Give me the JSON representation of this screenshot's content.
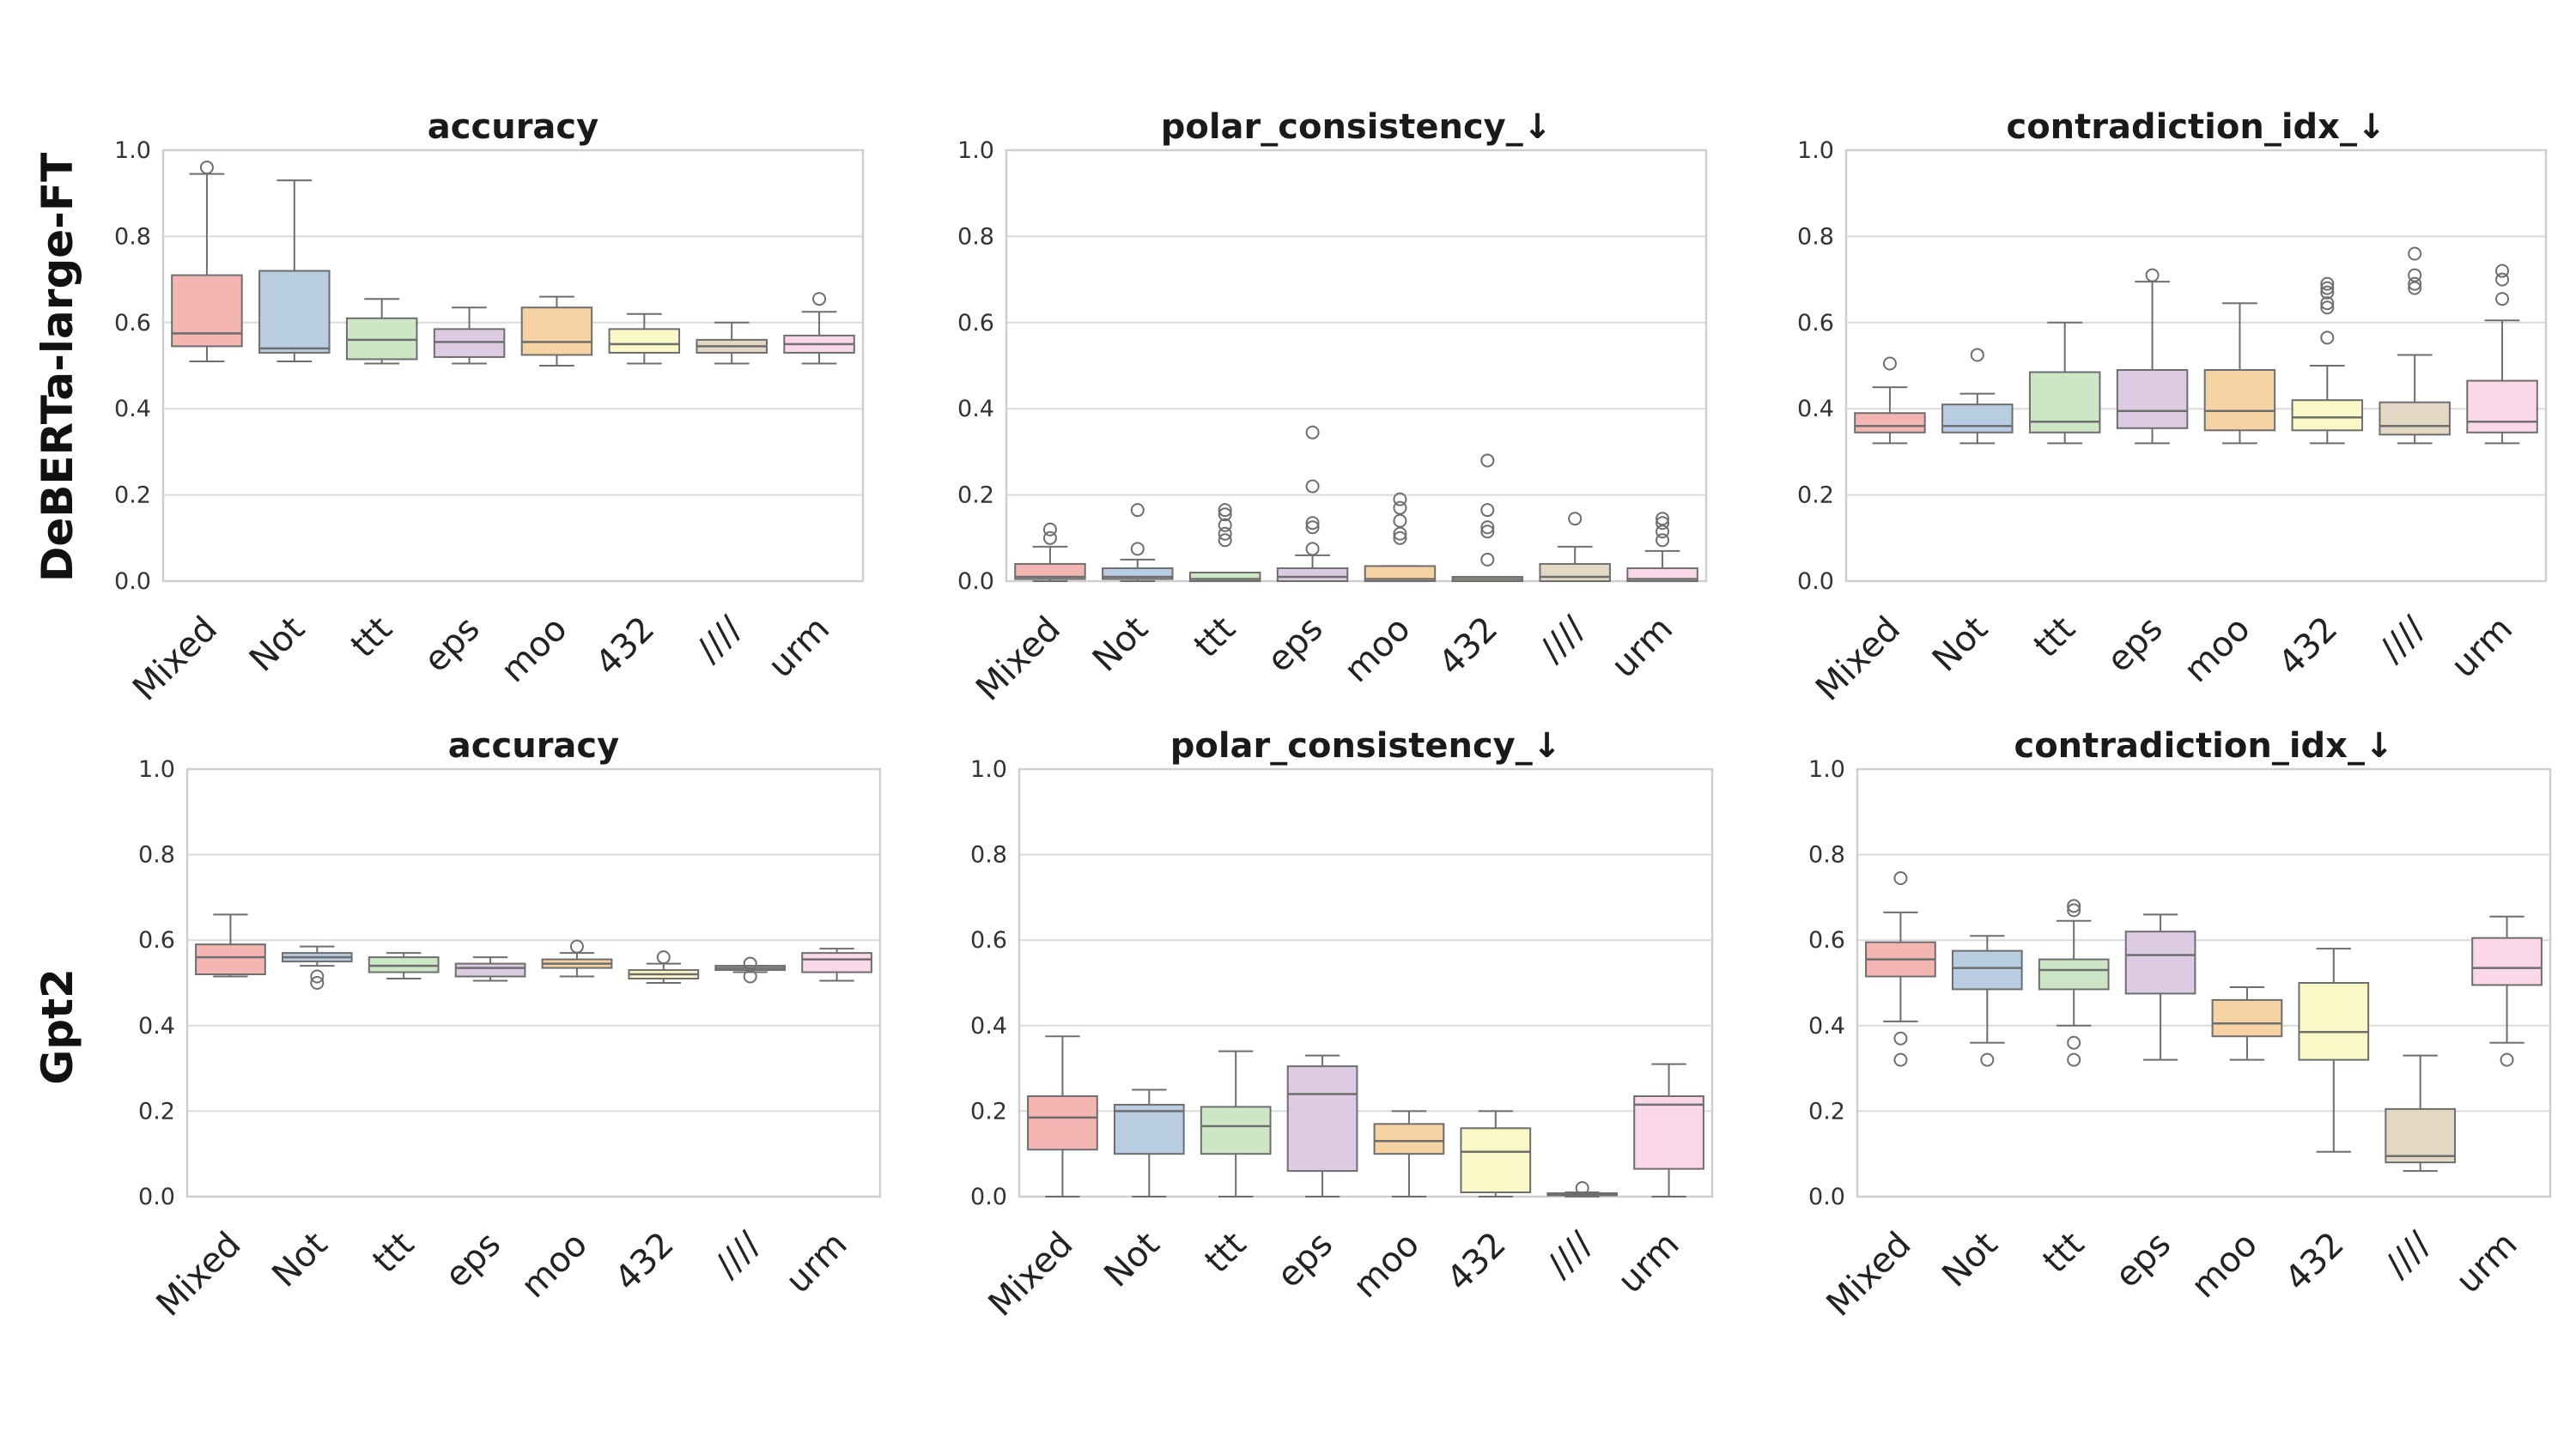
{
  "row_labels": [
    "DeBERTa-large-FT",
    "Gpt2"
  ],
  "palette": [
    "#f4b6b3",
    "#b8cce2",
    "#cde6c6",
    "#dccbe3",
    "#f7d2a3",
    "#fbf8c7",
    "#e3d8c3",
    "#fad8e9"
  ],
  "chart_data": [
    {
      "type": "box",
      "row": "DeBERTa-large-FT",
      "title": "accuracy",
      "categories": [
        "Mixed",
        "Not",
        "ttt",
        "eps",
        "moo",
        "432",
        "////",
        "urm"
      ],
      "ylim": [
        0,
        1
      ],
      "yticks": [
        "0.0",
        "0.2",
        "0.4",
        "0.6",
        "0.8",
        "1.0"
      ],
      "grid": true,
      "boxes": [
        {
          "whislo": 0.51,
          "q1": 0.545,
          "med": 0.575,
          "q3": 0.71,
          "whishi": 0.945,
          "fliers": [
            0.96
          ]
        },
        {
          "whislo": 0.51,
          "q1": 0.53,
          "med": 0.54,
          "q3": 0.72,
          "whishi": 0.93,
          "fliers": []
        },
        {
          "whislo": 0.505,
          "q1": 0.515,
          "med": 0.56,
          "q3": 0.61,
          "whishi": 0.655,
          "fliers": []
        },
        {
          "whislo": 0.505,
          "q1": 0.52,
          "med": 0.555,
          "q3": 0.585,
          "whishi": 0.635,
          "fliers": []
        },
        {
          "whislo": 0.5,
          "q1": 0.525,
          "med": 0.555,
          "q3": 0.635,
          "whishi": 0.66,
          "fliers": []
        },
        {
          "whislo": 0.505,
          "q1": 0.53,
          "med": 0.55,
          "q3": 0.585,
          "whishi": 0.62,
          "fliers": []
        },
        {
          "whislo": 0.505,
          "q1": 0.53,
          "med": 0.545,
          "q3": 0.56,
          "whishi": 0.6,
          "fliers": []
        },
        {
          "whislo": 0.505,
          "q1": 0.53,
          "med": 0.55,
          "q3": 0.57,
          "whishi": 0.625,
          "fliers": [
            0.655
          ]
        }
      ]
    },
    {
      "type": "box",
      "row": "DeBERTa-large-FT",
      "title": "polar_consistency_↓",
      "categories": [
        "Mixed",
        "Not",
        "ttt",
        "eps",
        "moo",
        "432",
        "////",
        "urm"
      ],
      "ylim": [
        0,
        1
      ],
      "yticks": [
        "0.0",
        "0.2",
        "0.4",
        "0.6",
        "0.8",
        "1.0"
      ],
      "grid": true,
      "boxes": [
        {
          "whislo": 0.0,
          "q1": 0.005,
          "med": 0.01,
          "q3": 0.04,
          "whishi": 0.08,
          "fliers": [
            0.1,
            0.12
          ]
        },
        {
          "whislo": 0.0,
          "q1": 0.005,
          "med": 0.01,
          "q3": 0.03,
          "whishi": 0.05,
          "fliers": [
            0.075,
            0.165
          ]
        },
        {
          "whislo": 0.0,
          "q1": 0.0,
          "med": 0.005,
          "q3": 0.02,
          "whishi": 0.02,
          "fliers": [
            0.095,
            0.11,
            0.13,
            0.155,
            0.165
          ]
        },
        {
          "whislo": 0.0,
          "q1": 0.0,
          "med": 0.01,
          "q3": 0.03,
          "whishi": 0.06,
          "fliers": [
            0.075,
            0.125,
            0.135,
            0.22,
            0.345
          ]
        },
        {
          "whislo": 0.0,
          "q1": 0.0,
          "med": 0.005,
          "q3": 0.035,
          "whishi": 0.035,
          "fliers": [
            0.1,
            0.11,
            0.14,
            0.17,
            0.19
          ]
        },
        {
          "whislo": 0.0,
          "q1": 0.0,
          "med": 0.005,
          "q3": 0.01,
          "whishi": 0.01,
          "fliers": [
            0.05,
            0.115,
            0.125,
            0.165,
            0.28
          ]
        },
        {
          "whislo": 0.0,
          "q1": 0.0,
          "med": 0.01,
          "q3": 0.04,
          "whishi": 0.08,
          "fliers": [
            0.145
          ]
        },
        {
          "whislo": 0.0,
          "q1": 0.0,
          "med": 0.005,
          "q3": 0.03,
          "whishi": 0.07,
          "fliers": [
            0.095,
            0.115,
            0.135,
            0.145
          ]
        }
      ]
    },
    {
      "type": "box",
      "row": "DeBERTa-large-FT",
      "title": "contradiction_idx_↓",
      "categories": [
        "Mixed",
        "Not",
        "ttt",
        "eps",
        "moo",
        "432",
        "////",
        "urm"
      ],
      "ylim": [
        0,
        1
      ],
      "yticks": [
        "0.0",
        "0.2",
        "0.4",
        "0.6",
        "0.8",
        "1.0"
      ],
      "grid": true,
      "boxes": [
        {
          "whislo": 0.32,
          "q1": 0.345,
          "med": 0.36,
          "q3": 0.39,
          "whishi": 0.45,
          "fliers": [
            0.505
          ]
        },
        {
          "whislo": 0.32,
          "q1": 0.345,
          "med": 0.36,
          "q3": 0.41,
          "whishi": 0.435,
          "fliers": [
            0.525
          ]
        },
        {
          "whislo": 0.32,
          "q1": 0.345,
          "med": 0.37,
          "q3": 0.485,
          "whishi": 0.6,
          "fliers": []
        },
        {
          "whislo": 0.32,
          "q1": 0.355,
          "med": 0.395,
          "q3": 0.49,
          "whishi": 0.695,
          "fliers": [
            0.71
          ]
        },
        {
          "whislo": 0.32,
          "q1": 0.35,
          "med": 0.395,
          "q3": 0.49,
          "whishi": 0.645,
          "fliers": []
        },
        {
          "whislo": 0.32,
          "q1": 0.35,
          "med": 0.38,
          "q3": 0.42,
          "whishi": 0.5,
          "fliers": [
            0.565,
            0.635,
            0.645,
            0.67,
            0.68,
            0.69
          ]
        },
        {
          "whislo": 0.32,
          "q1": 0.34,
          "med": 0.36,
          "q3": 0.415,
          "whishi": 0.525,
          "fliers": [
            0.68,
            0.69,
            0.71,
            0.76
          ]
        },
        {
          "whislo": 0.32,
          "q1": 0.345,
          "med": 0.37,
          "q3": 0.465,
          "whishi": 0.605,
          "fliers": [
            0.655,
            0.7,
            0.72
          ]
        }
      ]
    },
    {
      "type": "box",
      "row": "Gpt2",
      "title": "accuracy",
      "categories": [
        "Mixed",
        "Not",
        "ttt",
        "eps",
        "moo",
        "432",
        "////",
        "urm"
      ],
      "ylim": [
        0,
        1
      ],
      "yticks": [
        "0.0",
        "0.2",
        "0.4",
        "0.6",
        "0.8",
        "1.0"
      ],
      "grid": true,
      "boxes": [
        {
          "whislo": 0.515,
          "q1": 0.52,
          "med": 0.56,
          "q3": 0.59,
          "whishi": 0.66,
          "fliers": []
        },
        {
          "whislo": 0.54,
          "q1": 0.55,
          "med": 0.56,
          "q3": 0.57,
          "whishi": 0.585,
          "fliers": [
            0.5,
            0.515
          ]
        },
        {
          "whislo": 0.51,
          "q1": 0.525,
          "med": 0.54,
          "q3": 0.56,
          "whishi": 0.57,
          "fliers": []
        },
        {
          "whislo": 0.505,
          "q1": 0.515,
          "med": 0.535,
          "q3": 0.545,
          "whishi": 0.56,
          "fliers": []
        },
        {
          "whislo": 0.515,
          "q1": 0.535,
          "med": 0.545,
          "q3": 0.555,
          "whishi": 0.57,
          "fliers": [
            0.585
          ]
        },
        {
          "whislo": 0.5,
          "q1": 0.51,
          "med": 0.52,
          "q3": 0.53,
          "whishi": 0.545,
          "fliers": [
            0.56
          ]
        },
        {
          "whislo": 0.525,
          "q1": 0.53,
          "med": 0.535,
          "q3": 0.54,
          "whishi": 0.54,
          "fliers": [
            0.515,
            0.545
          ]
        },
        {
          "whislo": 0.505,
          "q1": 0.525,
          "med": 0.555,
          "q3": 0.57,
          "whishi": 0.58,
          "fliers": []
        }
      ]
    },
    {
      "type": "box",
      "row": "Gpt2",
      "title": "polar_consistency_↓",
      "categories": [
        "Mixed",
        "Not",
        "ttt",
        "eps",
        "moo",
        "432",
        "////",
        "urm"
      ],
      "ylim": [
        0,
        1
      ],
      "yticks": [
        "0.0",
        "0.2",
        "0.4",
        "0.6",
        "0.8",
        "1.0"
      ],
      "grid": true,
      "boxes": [
        {
          "whislo": 0.0,
          "q1": 0.11,
          "med": 0.185,
          "q3": 0.235,
          "whishi": 0.375,
          "fliers": []
        },
        {
          "whislo": 0.0,
          "q1": 0.1,
          "med": 0.2,
          "q3": 0.215,
          "whishi": 0.25,
          "fliers": []
        },
        {
          "whislo": 0.0,
          "q1": 0.1,
          "med": 0.165,
          "q3": 0.21,
          "whishi": 0.34,
          "fliers": []
        },
        {
          "whislo": 0.0,
          "q1": 0.06,
          "med": 0.24,
          "q3": 0.305,
          "whishi": 0.33,
          "fliers": []
        },
        {
          "whislo": 0.0,
          "q1": 0.1,
          "med": 0.13,
          "q3": 0.17,
          "whishi": 0.2,
          "fliers": []
        },
        {
          "whislo": 0.0,
          "q1": 0.01,
          "med": 0.105,
          "q3": 0.16,
          "whishi": 0.2,
          "fliers": []
        },
        {
          "whislo": 0.0,
          "q1": 0.003,
          "med": 0.005,
          "q3": 0.008,
          "whishi": 0.01,
          "fliers": [
            0.02
          ]
        },
        {
          "whislo": 0.0,
          "q1": 0.065,
          "med": 0.215,
          "q3": 0.235,
          "whishi": 0.31,
          "fliers": []
        }
      ]
    },
    {
      "type": "box",
      "row": "Gpt2",
      "title": "contradiction_idx_↓",
      "categories": [
        "Mixed",
        "Not",
        "ttt",
        "eps",
        "moo",
        "432",
        "////",
        "urm"
      ],
      "ylim": [
        0,
        1
      ],
      "yticks": [
        "0.0",
        "0.2",
        "0.4",
        "0.6",
        "0.8",
        "1.0"
      ],
      "grid": true,
      "boxes": [
        {
          "whislo": 0.41,
          "q1": 0.515,
          "med": 0.555,
          "q3": 0.595,
          "whishi": 0.665,
          "fliers": [
            0.32,
            0.37,
            0.745
          ]
        },
        {
          "whislo": 0.36,
          "q1": 0.485,
          "med": 0.535,
          "q3": 0.575,
          "whishi": 0.61,
          "fliers": [
            0.32
          ]
        },
        {
          "whislo": 0.4,
          "q1": 0.485,
          "med": 0.53,
          "q3": 0.555,
          "whishi": 0.645,
          "fliers": [
            0.32,
            0.36,
            0.67,
            0.68
          ]
        },
        {
          "whislo": 0.32,
          "q1": 0.475,
          "med": 0.565,
          "q3": 0.62,
          "whishi": 0.66,
          "fliers": []
        },
        {
          "whislo": 0.32,
          "q1": 0.375,
          "med": 0.405,
          "q3": 0.46,
          "whishi": 0.49,
          "fliers": []
        },
        {
          "whislo": 0.105,
          "q1": 0.32,
          "med": 0.385,
          "q3": 0.5,
          "whishi": 0.58,
          "fliers": []
        },
        {
          "whislo": 0.06,
          "q1": 0.08,
          "med": 0.095,
          "q3": 0.205,
          "whishi": 0.33,
          "fliers": []
        },
        {
          "whislo": 0.36,
          "q1": 0.495,
          "med": 0.535,
          "q3": 0.605,
          "whishi": 0.655,
          "fliers": [
            0.32
          ]
        }
      ]
    }
  ]
}
